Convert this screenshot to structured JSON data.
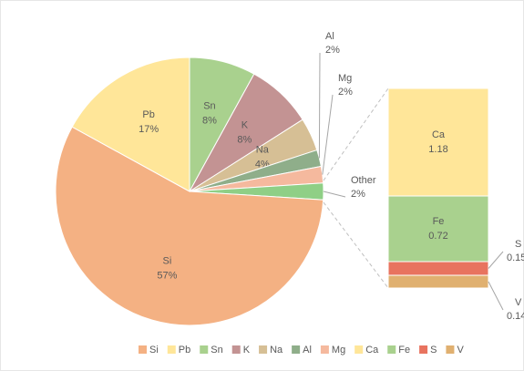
{
  "chart_data": {
    "type": "pie",
    "categories": [
      "Sn",
      "K",
      "Na",
      "Al",
      "Mg",
      "Other",
      "Si",
      "Pb"
    ],
    "values": [
      8,
      8,
      4,
      2,
      2,
      2,
      57,
      17
    ],
    "value_labels": [
      "8%",
      "8%",
      "4%",
      "2%",
      "2%",
      "2%",
      "57%",
      "17%"
    ],
    "colors": [
      "#a9d18e",
      "#c39393",
      "#d6bf95",
      "#8fae8a",
      "#f5b99e",
      "#8fcf86",
      "#f4b183",
      "#ffe699"
    ],
    "bar": {
      "categories": [
        "Ca",
        "Fe",
        "S",
        "V"
      ],
      "values": [
        1.18,
        0.72,
        0.15,
        0.14
      ],
      "colors": [
        "#ffe699",
        "#a9d18e",
        "#e8735f",
        "#e0b070"
      ]
    },
    "legend": [
      {
        "name": "Si",
        "color": "#f4b183"
      },
      {
        "name": "Pb",
        "color": "#ffe699"
      },
      {
        "name": "Sn",
        "color": "#a9d18e"
      },
      {
        "name": "K",
        "color": "#c39393"
      },
      {
        "name": "Na",
        "color": "#d6bf95"
      },
      {
        "name": "Al",
        "color": "#8fae8a"
      },
      {
        "name": "Mg",
        "color": "#f5b99e"
      },
      {
        "name": "Ca",
        "color": "#ffe699"
      },
      {
        "name": "Fe",
        "color": "#a9d18e"
      },
      {
        "name": "S",
        "color": "#e8735f"
      },
      {
        "name": "V",
        "color": "#e0b070"
      }
    ]
  }
}
